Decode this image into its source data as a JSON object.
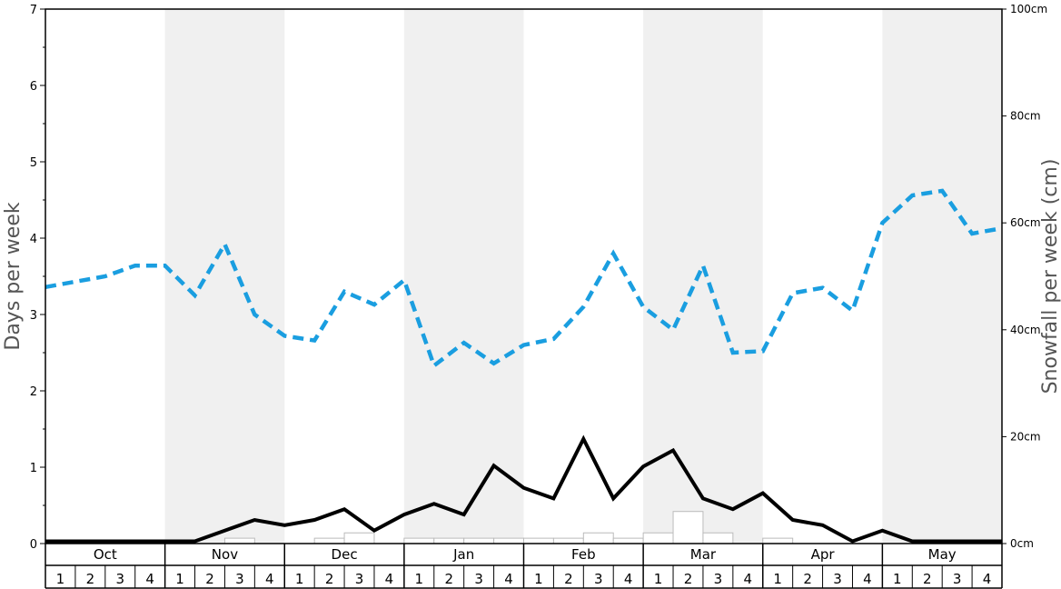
{
  "chart_data": {
    "type": "line",
    "ylabel_left": "Days per week",
    "ylabel_right": "Snowfall per week (cm)",
    "ylim_left": [
      0,
      7
    ],
    "ylim_right": [
      0,
      100
    ],
    "left_ticks": [
      "0",
      "1",
      "2",
      "3",
      "4",
      "5",
      "6",
      "7"
    ],
    "right_ticks": [
      "0cm",
      "20cm",
      "40cm",
      "60cm",
      "80cm",
      "100cm"
    ],
    "months": [
      "Oct",
      "Nov",
      "Dec",
      "Jan",
      "Feb",
      "Mar",
      "Apr",
      "May"
    ],
    "weeks": [
      "1",
      "2",
      "3",
      "4"
    ],
    "shaded_months": [
      1,
      3,
      5,
      7
    ],
    "colors": {
      "dashed_line": "#1a9ee0",
      "solid_line": "#000000",
      "shade": "#f0f0f0",
      "bars": "#ffffff"
    },
    "series": [
      {
        "style": "dashed",
        "axis": "left",
        "values": [
          3.36,
          3.43,
          3.5,
          3.64,
          3.64,
          3.25,
          3.92,
          3.0,
          2.72,
          2.66,
          3.3,
          3.13,
          3.45,
          2.33,
          2.63,
          2.36,
          2.6,
          2.68,
          3.1,
          3.8,
          3.1,
          2.8,
          3.64,
          2.5,
          2.52,
          3.28,
          3.35,
          3.05,
          4.2,
          4.56,
          4.62,
          4.06,
          4.13
        ]
      },
      {
        "style": "solid",
        "axis": "left",
        "values": [
          0.03,
          0.03,
          0.03,
          0.03,
          0.03,
          0.03,
          0.17,
          0.31,
          0.24,
          0.31,
          0.45,
          0.17,
          0.38,
          0.52,
          0.38,
          1.02,
          0.73,
          0.59,
          1.37,
          0.59,
          1.01,
          1.22,
          0.59,
          0.45,
          0.66,
          0.31,
          0.24,
          0.03,
          0.17,
          0.03,
          0.03,
          0.03,
          0.03
        ]
      },
      {
        "style": "bars",
        "axis": "right",
        "values": [
          0,
          0,
          0,
          0,
          0,
          0,
          1,
          0,
          0,
          1,
          2,
          0,
          1,
          1,
          1,
          1,
          1,
          1,
          2,
          1,
          2,
          6,
          2,
          0,
          1,
          0,
          0,
          0,
          0,
          0,
          0,
          0
        ]
      }
    ]
  }
}
